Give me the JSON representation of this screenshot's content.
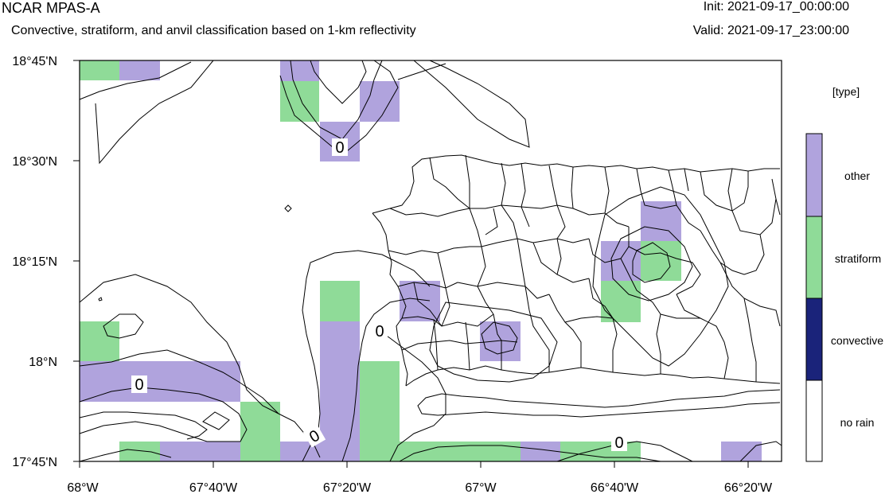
{
  "header": {
    "title": "NCAR MPAS-A",
    "subtitle": "Convective, stratiform, and anvil classification based on 1-km reflectivity",
    "init": "Init: 2021-09-17_00:00:00",
    "valid": "Valid: 2021-09-17_23:00:00"
  },
  "map": {
    "lon_range": [
      -68.0,
      -66.25
    ],
    "lat_range": [
      17.75,
      18.75
    ],
    "x_ticks": [
      {
        "lon": -68.0,
        "label": "68°W"
      },
      {
        "lon": -67.6667,
        "label": "67°40'W"
      },
      {
        "lon": -67.3333,
        "label": "67°20'W"
      },
      {
        "lon": -67.0,
        "label": "67°W"
      },
      {
        "lon": -66.6667,
        "label": "66°40'W"
      },
      {
        "lon": -66.3333,
        "label": "66°20'W"
      }
    ],
    "y_ticks": [
      {
        "lat": 18.75,
        "label": "18°45'N"
      },
      {
        "lat": 18.5,
        "label": "18°30'N"
      },
      {
        "lat": 18.25,
        "label": "18°15'N"
      },
      {
        "lat": 18.0,
        "label": "18°N"
      },
      {
        "lat": 17.75,
        "label": "17°45'N"
      }
    ],
    "contour_labels": [
      "0",
      "0",
      "0",
      "0",
      "0"
    ]
  },
  "colorbar": {
    "title": "[type]",
    "classes": [
      {
        "label": "other",
        "color": "#b0a3dd"
      },
      {
        "label": "stratiform",
        "color": "#8fdb98"
      },
      {
        "label": "convective",
        "color": "#1a237a"
      },
      {
        "label": "no rain",
        "color": "#ffffff"
      }
    ]
  },
  "colors": {
    "other": "#b0a3dd",
    "stratiform": "#8fdb98",
    "convective": "#1a237a",
    "line": "#000000"
  }
}
